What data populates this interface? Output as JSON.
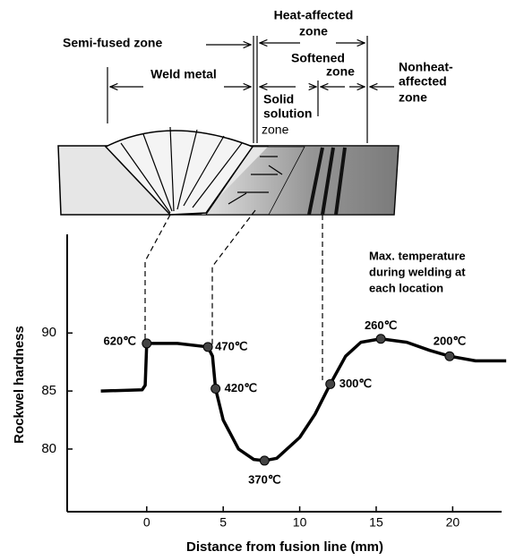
{
  "chart_data": {
    "type": "line",
    "x_label": "Distance from fusion line (mm)",
    "y_label": "Rockwel hardness",
    "xlim": [
      -5.2,
      23.2
    ],
    "ylim": [
      74.6,
      98.5
    ],
    "xticks": [
      0,
      5,
      10,
      15,
      20
    ],
    "yticks": [
      80,
      85,
      90
    ],
    "x": [
      -3,
      -0.3,
      -0.1,
      0,
      2,
      4,
      4.3,
      4.5,
      5,
      6,
      7,
      7.7,
      8.5,
      10,
      11,
      12,
      13,
      14,
      15.3,
      17,
      18.5,
      19.8,
      21.5,
      23.5
    ],
    "series": [
      {
        "color": "#000000",
        "values": [
          85,
          85.1,
          85.5,
          89.1,
          89.1,
          88.8,
          88,
          85.2,
          82.5,
          80,
          79.1,
          79,
          79.2,
          81,
          83,
          85.6,
          88,
          89.2,
          89.5,
          89.2,
          88.5,
          88,
          87.6,
          87.6
        ]
      }
    ],
    "points": {
      "x": [
        0,
        4,
        4.5,
        7.7,
        12,
        15.3,
        19.8
      ],
      "values": [
        89.1,
        88.8,
        85.2,
        79,
        85.6,
        89.5,
        88
      ],
      "labels": [
        "620℃",
        "470℃",
        "420℃",
        "370℃",
        "300℃",
        "260℃",
        "200℃"
      ]
    },
    "note": [
      "Max. temperature",
      "during welding at",
      "each location"
    ],
    "zones": [
      {
        "lines": [
          "Heat-affected",
          "zone"
        ]
      },
      {
        "lines": [
          "Semi-fused zone"
        ]
      },
      {
        "lines": [
          "Weld metal"
        ]
      },
      {
        "lines": [
          "Softened",
          "zone"
        ]
      },
      {
        "lines": [
          "Nonheat-",
          "affected",
          "zone"
        ]
      },
      {
        "lines": [
          "Solid",
          "solution",
          "zone"
        ]
      }
    ]
  }
}
